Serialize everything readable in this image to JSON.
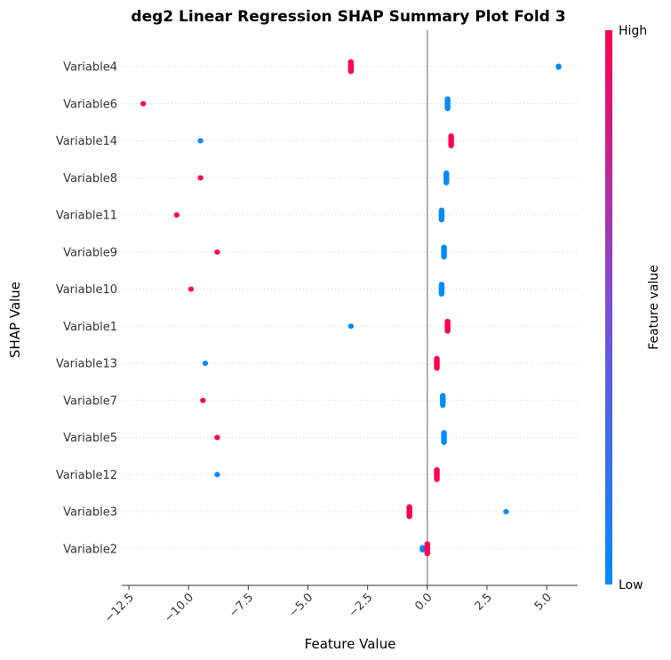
{
  "chart_data": {
    "type": "scatter",
    "title": "deg2 Linear Regression SHAP Summary Plot Fold 3",
    "xlabel": "Feature Value",
    "ylabel": "SHAP Value",
    "xlim": [
      -12.8,
      6.3
    ],
    "xticks": [
      "−12.5",
      "−10.0",
      "−7.5",
      "−5.0",
      "−2.5",
      "0.0",
      "2.5",
      "5.0"
    ],
    "xtick_values": [
      -12.5,
      -10.0,
      -7.5,
      -5.0,
      -2.5,
      0.0,
      2.5,
      5.0
    ],
    "grid": false,
    "colorbar": {
      "label": "Feature value",
      "high_label": "High",
      "low_label": "Low",
      "high_color": "#ff0052",
      "mid_color": "#7b4fd8",
      "low_color": "#008bfb"
    },
    "features": [
      {
        "name": "Variable4",
        "points": [
          {
            "x": -3.2,
            "level": "high",
            "span": 0.6
          },
          {
            "x": 5.5,
            "level": "low",
            "span": 0.25
          }
        ]
      },
      {
        "name": "Variable6",
        "points": [
          {
            "x": -11.9,
            "level": "high",
            "span": 0.1
          },
          {
            "x": 0.85,
            "level": "low",
            "span": 0.6
          }
        ]
      },
      {
        "name": "Variable14",
        "points": [
          {
            "x": -9.5,
            "level": "low",
            "span": 0.1
          },
          {
            "x": 1.0,
            "level": "high",
            "span": 0.6
          }
        ]
      },
      {
        "name": "Variable8",
        "points": [
          {
            "x": -9.5,
            "level": "high",
            "span": 0.1
          },
          {
            "x": 0.8,
            "level": "low",
            "span": 0.6
          }
        ]
      },
      {
        "name": "Variable11",
        "points": [
          {
            "x": -10.5,
            "level": "high",
            "span": 0.1
          },
          {
            "x": 0.6,
            "level": "low",
            "span": 0.6
          }
        ]
      },
      {
        "name": "Variable9",
        "points": [
          {
            "x": -8.8,
            "level": "high",
            "span": 0.1
          },
          {
            "x": 0.7,
            "level": "low",
            "span": 0.6
          }
        ]
      },
      {
        "name": "Variable10",
        "points": [
          {
            "x": -9.9,
            "level": "high",
            "span": 0.1
          },
          {
            "x": 0.6,
            "level": "low",
            "span": 0.6
          }
        ]
      },
      {
        "name": "Variable1",
        "points": [
          {
            "x": -3.2,
            "level": "low",
            "span": 0.15
          },
          {
            "x": 0.85,
            "level": "high",
            "span": 0.6
          }
        ]
      },
      {
        "name": "Variable13",
        "points": [
          {
            "x": -9.3,
            "level": "low",
            "span": 0.1
          },
          {
            "x": 0.4,
            "level": "high",
            "span": 0.6
          }
        ]
      },
      {
        "name": "Variable7",
        "points": [
          {
            "x": -9.4,
            "level": "high",
            "span": 0.1
          },
          {
            "x": 0.65,
            "level": "low",
            "span": 0.6
          }
        ]
      },
      {
        "name": "Variable5",
        "points": [
          {
            "x": -8.8,
            "level": "high",
            "span": 0.1
          },
          {
            "x": 0.7,
            "level": "low",
            "span": 0.6
          }
        ]
      },
      {
        "name": "Variable12",
        "points": [
          {
            "x": -8.8,
            "level": "low",
            "span": 0.1
          },
          {
            "x": 0.4,
            "level": "high",
            "span": 0.6
          }
        ]
      },
      {
        "name": "Variable3",
        "points": [
          {
            "x": -0.75,
            "level": "high",
            "span": 0.6
          },
          {
            "x": 3.3,
            "level": "low",
            "span": 0.2
          }
        ]
      },
      {
        "name": "Variable2",
        "points": [
          {
            "x": -0.2,
            "level": "low",
            "span": 0.3
          },
          {
            "x": 0.0,
            "level": "high",
            "span": 0.6
          }
        ]
      }
    ]
  }
}
